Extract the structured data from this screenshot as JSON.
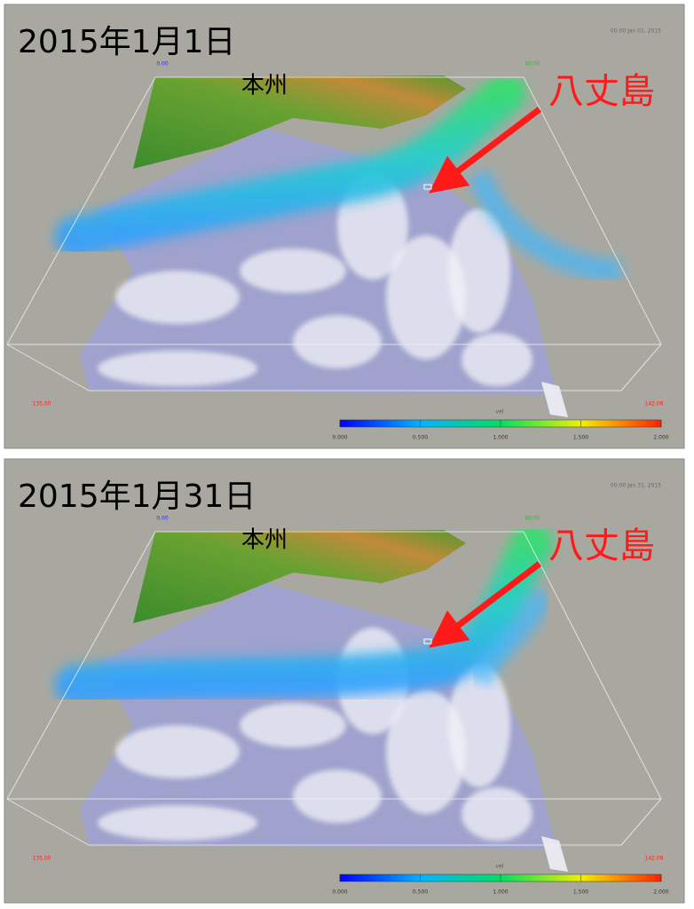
{
  "panels": [
    {
      "date": "2015年1月1日",
      "timestamp": "00:00 Jan 01, 2015",
      "region": "本州",
      "island": "八丈島",
      "corner_top_left": "0.00",
      "corner_top_right": "40.00",
      "corner_bottom_left": "135.00",
      "corner_bottom_right": "142.08",
      "colorbar_title": "vel",
      "colorbar_labels": [
        "0.000",
        "0.500",
        "1.000",
        "1.500",
        "2.000"
      ]
    },
    {
      "date": "2015年1月31日",
      "timestamp": "00:00 Jan 31, 2015",
      "region": "本州",
      "island": "八丈島",
      "corner_top_left": "0.00",
      "corner_top_right": "40.00",
      "corner_bottom_left": "135.00",
      "corner_bottom_right": "142.08",
      "colorbar_title": "vel",
      "colorbar_labels": [
        "0.000",
        "0.500",
        "1.000",
        "1.500",
        "2.000"
      ]
    }
  ]
}
